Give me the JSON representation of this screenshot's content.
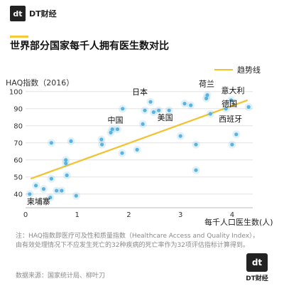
{
  "brand": {
    "logo_mark": "dt",
    "name": "DT财经"
  },
  "chart_data": {
    "type": "scatter",
    "title": "世界部分国家每千人拥有医生数对比",
    "ylabel": "HAQ指数（2016）",
    "xlabel": "每千人口医生数(人)",
    "xlim": [
      0,
      4.4
    ],
    "ylim": [
      32,
      102
    ],
    "xticks": [
      0,
      1,
      2,
      3,
      4
    ],
    "yticks": [
      40,
      50,
      60,
      70,
      80,
      90,
      100
    ],
    "legend": "趋势线",
    "point_color": "#5bb4e0",
    "trend_color": "#f2c230",
    "trendline": {
      "x": [
        0.1,
        4.3
      ],
      "y": [
        49,
        95
      ]
    },
    "points": [
      {
        "x": 0.08,
        "y": 40,
        "label": "柬埔寨"
      },
      {
        "x": 0.2,
        "y": 45
      },
      {
        "x": 0.35,
        "y": 43
      },
      {
        "x": 0.48,
        "y": 38
      },
      {
        "x": 0.5,
        "y": 70
      },
      {
        "x": 0.5,
        "y": 49
      },
      {
        "x": 0.6,
        "y": 42
      },
      {
        "x": 0.7,
        "y": 42
      },
      {
        "x": 0.78,
        "y": 60
      },
      {
        "x": 0.78,
        "y": 58
      },
      {
        "x": 0.8,
        "y": 51
      },
      {
        "x": 0.88,
        "y": 71
      },
      {
        "x": 0.98,
        "y": 39
      },
      {
        "x": 1.47,
        "y": 72
      },
      {
        "x": 1.48,
        "y": 69
      },
      {
        "x": 1.65,
        "y": 76
      },
      {
        "x": 1.68,
        "y": 78
      },
      {
        "x": 1.78,
        "y": 78,
        "label": "中国"
      },
      {
        "x": 1.87,
        "y": 64
      },
      {
        "x": 1.88,
        "y": 90
      },
      {
        "x": 2.16,
        "y": 66
      },
      {
        "x": 2.27,
        "y": 81
      },
      {
        "x": 2.31,
        "y": 89
      },
      {
        "x": 2.42,
        "y": 94,
        "label": "日本"
      },
      {
        "x": 2.48,
        "y": 88
      },
      {
        "x": 2.58,
        "y": 89,
        "label": "美国"
      },
      {
        "x": 2.78,
        "y": 89
      },
      {
        "x": 3.0,
        "y": 74
      },
      {
        "x": 3.08,
        "y": 93
      },
      {
        "x": 3.2,
        "y": 92
      },
      {
        "x": 3.3,
        "y": 69
      },
      {
        "x": 3.3,
        "y": 54
      },
      {
        "x": 3.5,
        "y": 96
      },
      {
        "x": 3.52,
        "y": 98,
        "label": "荷兰"
      },
      {
        "x": 3.58,
        "y": 87
      },
      {
        "x": 3.88,
        "y": 90,
        "label": "西班牙"
      },
      {
        "x": 3.98,
        "y": 95,
        "label": "意大利"
      },
      {
        "x": 4.08,
        "y": 75
      },
      {
        "x": 4.0,
        "y": 69
      },
      {
        "x": 4.32,
        "y": 91,
        "label": "德国"
      }
    ]
  },
  "note": "注：HAQ指数即医疗可及性和质量指数（Healthcare Access and Quality Index），由有效处理情况下不应发生死亡的32种疾病的死亡率作为32项评估指标计算得到。",
  "source": "数据来源：国家统计局、柳叶刀"
}
